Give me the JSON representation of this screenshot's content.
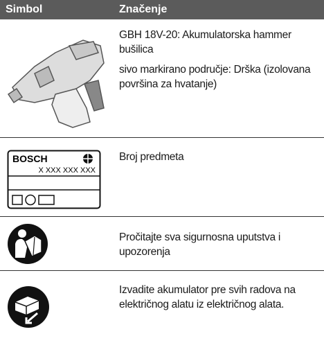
{
  "header": {
    "columns": [
      "Simbol",
      "Značenje"
    ]
  },
  "rows": [
    {
      "text": [
        "GBH 18V-20: Akumulatorska hammer bušilica",
        "sivo markirano područje: Drška (izolovana površina za hvatanje)"
      ]
    },
    {
      "label": {
        "brand": "BOSCH",
        "number": "X XXX XXX XXX"
      },
      "text": [
        "Broj predmeta"
      ]
    },
    {
      "text": [
        "Pročitajte sva sigurnosna uputstva i upozorenja"
      ]
    },
    {
      "text": [
        "Izvadite akumulator pre svih radova na električnog alatu iz električnog alata."
      ]
    }
  ]
}
